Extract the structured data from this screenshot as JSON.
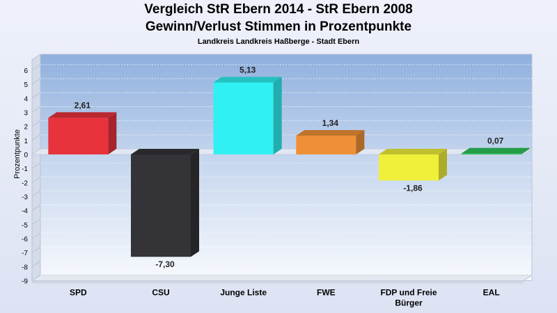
{
  "chart_title": "Vergleich StR Ebern 2014 - StR Ebern 2008",
  "chart_subtitle": "Gewinn/Verlust Stimmen in Prozentpunkte",
  "chart_caption": "Landkreis Landkreis Haßberge - Stadt Ebern",
  "chart_data": {
    "type": "bar",
    "title": "Vergleich StR Ebern 2014 - StR Ebern 2008",
    "subtitle": "Gewinn/Verlust Stimmen in Prozentpunkte",
    "xlabel": "",
    "ylabel": "Prozentpunkte",
    "ylim": [
      -9,
      7
    ],
    "yticks": [
      6,
      5,
      4,
      3,
      2,
      1,
      0,
      -1,
      -2,
      -3,
      -4,
      -5,
      -6,
      -7,
      -8,
      -9
    ],
    "categories": [
      "SPD",
      "CSU",
      "Junge Liste",
      "FWE",
      "FDP und Freie Bürger",
      "EAL"
    ],
    "values": [
      2.61,
      -7.3,
      5.13,
      1.34,
      -1.86,
      0.07
    ],
    "value_labels": [
      "2,61",
      "-7,30",
      "5,13",
      "1,34",
      "-1,86",
      "0,07"
    ],
    "colors": [
      "#e8323c",
      "#333338",
      "#2ff0f2",
      "#ef9036",
      "#f0ef3a",
      "#2ec35a"
    ],
    "grid": true,
    "legend": "none"
  }
}
